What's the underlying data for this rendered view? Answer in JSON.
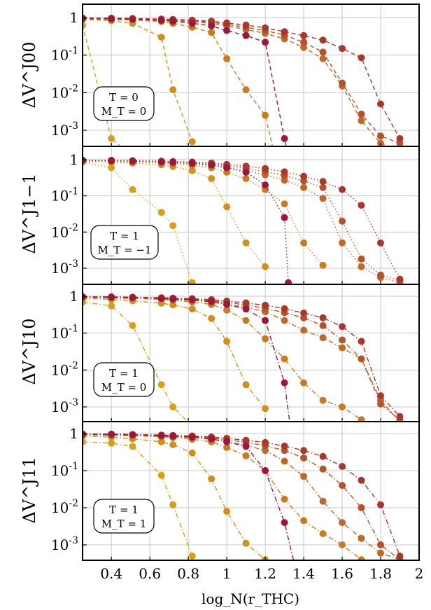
{
  "chart_data": {
    "type": "line",
    "xlabel": "log_N(r_THC)",
    "x_ticks": [
      "0.4",
      "0.6",
      "0.8",
      "1",
      "1.2",
      "1.4",
      "1.6",
      "1.8",
      "2"
    ],
    "x_tick_values": [
      0.4,
      0.6,
      0.8,
      1.0,
      1.2,
      1.4,
      1.6,
      1.8,
      2.0
    ],
    "xlim": [
      0.25,
      2.0
    ],
    "ylim": [
      0.0003,
      2
    ],
    "yscale": "log",
    "y_ticks": [
      "1",
      "10^-1",
      "10^-2",
      "10^-3"
    ],
    "y_tick_values": [
      1,
      0.1,
      0.01,
      0.001
    ],
    "grid": true,
    "series_colors": [
      "#d7a018",
      "#d0901e",
      "#c87a24",
      "#bf6828",
      "#b4522a",
      "#a8382e",
      "#98193a"
    ],
    "panels": [
      {
        "ylabel": "ΔV^J00",
        "box_line1": "T = 0",
        "box_line2": "M_T = 0",
        "line_style": "dashed",
        "series": [
          {
            "x": [
              0.25,
              0.4,
              0.51
            ],
            "y": [
              0.62,
              0.0006,
              0.0002
            ]
          },
          {
            "x": [
              0.25,
              0.4,
              0.51,
              0.66,
              0.72,
              0.82
            ],
            "y": [
              0.9,
              0.82,
              0.7,
              0.3,
              0.012,
              0.0005
            ]
          },
          {
            "x": [
              0.25,
              0.4,
              0.51,
              0.66,
              0.72,
              0.82,
              0.92,
              1.0,
              1.1,
              1.2,
              1.25
            ],
            "y": [
              0.92,
              0.9,
              0.86,
              0.78,
              0.7,
              0.55,
              0.4,
              0.08,
              0.012,
              0.0025,
              0.0002
            ]
          },
          {
            "x": [
              0.25,
              0.4,
              0.51,
              0.66,
              0.72,
              0.82,
              0.92,
              1.0,
              1.1,
              1.2,
              1.3,
              1.4,
              1.5,
              1.6,
              1.7,
              1.8,
              1.9
            ],
            "y": [
              0.95,
              0.93,
              0.9,
              0.85,
              0.82,
              0.77,
              0.7,
              0.6,
              0.48,
              0.38,
              0.27,
              0.16,
              0.08,
              0.015,
              0.0018,
              0.00045,
              0.0003
            ]
          },
          {
            "x": [
              0.25,
              0.4,
              0.51,
              0.66,
              0.72,
              0.82,
              0.92,
              1.0,
              1.1,
              1.2,
              1.3,
              1.4,
              1.5,
              1.6,
              1.7,
              1.8,
              1.9
            ],
            "y": [
              0.96,
              0.94,
              0.92,
              0.88,
              0.86,
              0.82,
              0.75,
              0.66,
              0.55,
              0.45,
              0.34,
              0.22,
              0.12,
              0.018,
              0.0027,
              0.0007,
              0.00045
            ]
          },
          {
            "x": [
              0.25,
              0.4,
              0.51,
              0.66,
              0.72,
              0.82,
              0.92,
              1.0,
              1.1,
              1.2,
              1.3,
              1.4,
              1.5,
              1.6,
              1.7,
              1.8,
              1.9
            ],
            "y": [
              0.97,
              0.96,
              0.94,
              0.91,
              0.89,
              0.85,
              0.8,
              0.72,
              0.63,
              0.53,
              0.42,
              0.33,
              0.25,
              0.15,
              0.085,
              0.005,
              0.0006
            ]
          },
          {
            "x": [
              0.25,
              0.4,
              0.51,
              0.66,
              0.72,
              0.82,
              0.92,
              1.0,
              1.1,
              1.2,
              1.3,
              1.32
            ],
            "y": [
              0.94,
              0.92,
              0.9,
              0.84,
              0.8,
              0.7,
              0.6,
              0.45,
              0.33,
              0.22,
              0.0006,
              0.0002
            ]
          }
        ]
      },
      {
        "ylabel": "ΔV^J1−1",
        "box_line1": "T = 1",
        "box_line2": "M_T = −1",
        "line_style": "dotted",
        "series": [
          {
            "x": [
              0.25,
              0.4,
              0.51,
              0.66,
              0.72,
              0.82
            ],
            "y": [
              0.85,
              0.6,
              0.15,
              0.035,
              0.015,
              0.0004
            ]
          },
          {
            "x": [
              0.25,
              0.4,
              0.51,
              0.66,
              0.72,
              0.82,
              0.92,
              1.0,
              1.1,
              1.2
            ],
            "y": [
              0.9,
              0.85,
              0.8,
              0.72,
              0.65,
              0.5,
              0.3,
              0.05,
              0.005,
              0.0011
            ]
          },
          {
            "x": [
              0.25,
              0.4,
              0.51,
              0.66,
              0.72,
              0.82,
              0.92,
              1.0,
              1.1,
              1.2,
              1.3,
              1.4,
              1.5
            ],
            "y": [
              0.93,
              0.9,
              0.87,
              0.82,
              0.78,
              0.7,
              0.6,
              0.45,
              0.3,
              0.15,
              0.06,
              0.005,
              0.0012
            ]
          },
          {
            "x": [
              0.25,
              0.4,
              0.51,
              0.66,
              0.72,
              0.82,
              0.92,
              1.0,
              1.1,
              1.2,
              1.3,
              1.4,
              1.5,
              1.6,
              1.7,
              1.8,
              1.9
            ],
            "y": [
              0.95,
              0.93,
              0.9,
              0.86,
              0.83,
              0.78,
              0.7,
              0.6,
              0.5,
              0.38,
              0.27,
              0.17,
              0.085,
              0.005,
              0.0011,
              0.00055,
              0.0004
            ]
          },
          {
            "x": [
              0.25,
              0.4,
              0.51,
              0.66,
              0.72,
              0.82,
              0.92,
              1.0,
              1.1,
              1.2,
              1.3,
              1.4,
              1.5,
              1.6,
              1.7,
              1.8,
              1.9
            ],
            "y": [
              0.96,
              0.94,
              0.92,
              0.88,
              0.86,
              0.82,
              0.76,
              0.68,
              0.58,
              0.47,
              0.36,
              0.26,
              0.17,
              0.02,
              0.0018,
              0.00065,
              0.00045
            ]
          },
          {
            "x": [
              0.25,
              0.4,
              0.51,
              0.66,
              0.72,
              0.82,
              0.92,
              1.0,
              1.1,
              1.2,
              1.3,
              1.4,
              1.5,
              1.6,
              1.7,
              1.8,
              1.9
            ],
            "y": [
              0.97,
              0.96,
              0.94,
              0.91,
              0.89,
              0.86,
              0.81,
              0.74,
              0.66,
              0.57,
              0.46,
              0.35,
              0.25,
              0.15,
              0.055,
              0.005,
              0.0005
            ]
          },
          {
            "x": [
              0.25,
              0.4,
              0.51,
              0.66,
              0.72,
              0.82,
              0.92,
              1.0,
              1.1,
              1.2,
              1.3,
              1.32
            ],
            "y": [
              0.96,
              0.94,
              0.92,
              0.88,
              0.85,
              0.8,
              0.72,
              0.6,
              0.45,
              0.2,
              0.025,
              0.0004
            ]
          }
        ]
      },
      {
        "ylabel": "ΔV^J10",
        "box_line1": "T = 1",
        "box_line2": "M_T = 0",
        "line_style": "dashdot",
        "series": [
          {
            "x": [
              0.25,
              0.4,
              0.51,
              0.66,
              0.72,
              0.82
            ],
            "y": [
              0.7,
              0.55,
              0.16,
              0.004,
              0.001,
              0.0003
            ]
          },
          {
            "x": [
              0.25,
              0.4,
              0.51,
              0.66,
              0.72,
              0.82,
              0.92,
              1.0,
              1.1,
              1.2
            ],
            "y": [
              0.88,
              0.82,
              0.75,
              0.65,
              0.58,
              0.45,
              0.25,
              0.06,
              0.004,
              0.0009
            ]
          },
          {
            "x": [
              0.25,
              0.4,
              0.51,
              0.66,
              0.72,
              0.82,
              0.92,
              1.0,
              1.1,
              1.2,
              1.3,
              1.4,
              1.5,
              1.6,
              1.7
            ],
            "y": [
              0.92,
              0.9,
              0.87,
              0.82,
              0.78,
              0.7,
              0.6,
              0.42,
              0.22,
              0.07,
              0.02,
              0.0045,
              0.0015,
              0.001,
              0.00045
            ]
          },
          {
            "x": [
              0.25,
              0.4,
              0.51,
              0.66,
              0.72,
              0.82,
              0.92,
              1.0,
              1.1,
              1.2,
              1.3,
              1.4,
              1.5,
              1.6,
              1.7,
              1.8,
              1.9
            ],
            "y": [
              0.95,
              0.93,
              0.9,
              0.86,
              0.83,
              0.78,
              0.7,
              0.6,
              0.5,
              0.38,
              0.22,
              0.12,
              0.075,
              0.04,
              0.02,
              0.0015,
              0.0004
            ]
          },
          {
            "x": [
              0.25,
              0.4,
              0.51,
              0.66,
              0.72,
              0.82,
              0.92,
              1.0,
              1.1,
              1.2,
              1.3,
              1.4,
              1.5,
              1.6,
              1.7,
              1.8,
              1.9
            ],
            "y": [
              0.96,
              0.94,
              0.92,
              0.88,
              0.86,
              0.82,
              0.76,
              0.68,
              0.58,
              0.47,
              0.36,
              0.26,
              0.16,
              0.065,
              0.02,
              0.0012,
              0.00045
            ]
          },
          {
            "x": [
              0.25,
              0.4,
              0.51,
              0.66,
              0.72,
              0.82,
              0.92,
              1.0,
              1.1,
              1.2,
              1.3,
              1.4,
              1.5,
              1.6,
              1.7,
              1.8,
              1.9
            ],
            "y": [
              0.97,
              0.96,
              0.94,
              0.91,
              0.89,
              0.86,
              0.81,
              0.74,
              0.66,
              0.57,
              0.46,
              0.35,
              0.26,
              0.15,
              0.06,
              0.002,
              0.00055
            ]
          },
          {
            "x": [
              0.25,
              0.4,
              0.51,
              0.66,
              0.72,
              0.82,
              0.92,
              1.0,
              1.1,
              1.2,
              1.3,
              1.33
            ],
            "y": [
              0.96,
              0.94,
              0.92,
              0.88,
              0.85,
              0.8,
              0.72,
              0.6,
              0.45,
              0.22,
              0.0045,
              0.0003
            ]
          }
        ]
      },
      {
        "ylabel": "ΔV^J11",
        "box_line1": "T = 1",
        "box_line2": "M_T = 1",
        "line_style": "dashdot",
        "series": [
          {
            "x": [
              0.25,
              0.4,
              0.51,
              0.66,
              0.72,
              0.82
            ],
            "y": [
              0.6,
              0.55,
              0.45,
              0.075,
              0.012,
              0.0005
            ]
          },
          {
            "x": [
              0.25,
              0.4,
              0.51,
              0.66,
              0.72,
              0.82,
              0.92,
              1.0,
              1.1,
              1.2
            ],
            "y": [
              0.85,
              0.8,
              0.72,
              0.6,
              0.5,
              0.3,
              0.06,
              0.008,
              0.0011,
              0.0004
            ]
          },
          {
            "x": [
              0.25,
              0.4,
              0.51,
              0.66,
              0.72,
              0.82,
              0.92,
              1.0,
              1.1,
              1.2,
              1.3,
              1.4,
              1.5,
              1.6,
              1.7
            ],
            "y": [
              0.92,
              0.9,
              0.87,
              0.82,
              0.78,
              0.7,
              0.6,
              0.42,
              0.25,
              0.1,
              0.017,
              0.0045,
              0.002,
              0.001,
              0.0004
            ]
          },
          {
            "x": [
              0.25,
              0.4,
              0.51,
              0.66,
              0.72,
              0.82,
              0.92,
              1.0,
              1.1,
              1.2,
              1.3,
              1.4,
              1.5,
              1.6,
              1.7,
              1.8,
              1.9
            ],
            "y": [
              0.95,
              0.93,
              0.9,
              0.86,
              0.83,
              0.78,
              0.7,
              0.6,
              0.48,
              0.35,
              0.18,
              0.07,
              0.015,
              0.004,
              0.0015,
              0.0006,
              0.0004
            ]
          },
          {
            "x": [
              0.25,
              0.4,
              0.51,
              0.66,
              0.72,
              0.82,
              0.92,
              1.0,
              1.1,
              1.2,
              1.3,
              1.4,
              1.5,
              1.6,
              1.7,
              1.8,
              1.9
            ],
            "y": [
              0.96,
              0.94,
              0.92,
              0.88,
              0.86,
              0.82,
              0.76,
              0.68,
              0.58,
              0.47,
              0.35,
              0.22,
              0.11,
              0.04,
              0.01,
              0.001,
              0.0004
            ]
          },
          {
            "x": [
              0.25,
              0.4,
              0.51,
              0.66,
              0.72,
              0.82,
              0.92,
              1.0,
              1.1,
              1.2,
              1.3,
              1.4,
              1.5,
              1.6,
              1.7,
              1.8,
              1.9
            ],
            "y": [
              0.97,
              0.96,
              0.94,
              0.91,
              0.89,
              0.86,
              0.81,
              0.74,
              0.66,
              0.57,
              0.46,
              0.35,
              0.24,
              0.13,
              0.055,
              0.012,
              0.0005
            ]
          },
          {
            "x": [
              0.25,
              0.4,
              0.51,
              0.66,
              0.72,
              0.82,
              0.92,
              1.0,
              1.1,
              1.2,
              1.3,
              1.36
            ],
            "y": [
              0.96,
              0.94,
              0.92,
              0.88,
              0.85,
              0.8,
              0.72,
              0.6,
              0.45,
              0.1,
              0.004,
              0.0002
            ]
          }
        ]
      }
    ]
  }
}
